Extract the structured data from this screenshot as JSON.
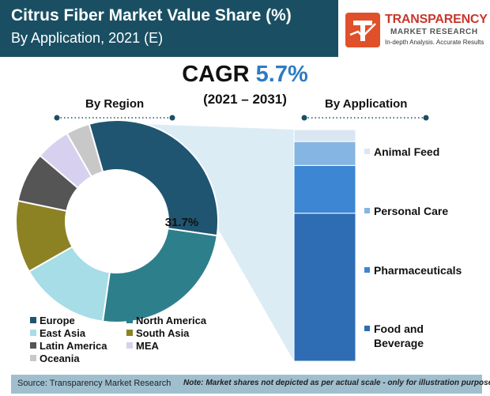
{
  "header": {
    "title": "Citrus Fiber Market Value Share (%)",
    "subtitle": "By Application, 2021 (E)"
  },
  "logo": {
    "name": "TRANSPARENCY",
    "sub": "MARKET RESEARCH",
    "tagline": "In-depth Analysis. Accurate Results"
  },
  "cagr": {
    "label": "CAGR",
    "value": "5.7%",
    "period": "(2021 – 2031)"
  },
  "chart_data": [
    {
      "type": "pie",
      "title": "By Region",
      "annotation": "31.7%",
      "categories": [
        "Europe",
        "North America",
        "East Asia",
        "South Asia",
        "Latin America",
        "MEA",
        "Oceania"
      ],
      "values": [
        31.7,
        25.0,
        14.5,
        11.5,
        8.0,
        5.5,
        3.8
      ],
      "colors": [
        "#1f5570",
        "#2e7f8c",
        "#a6dde6",
        "#8c8224",
        "#555555",
        "#d7d0ef",
        "#c8c8c8"
      ],
      "legend": "bottom"
    },
    {
      "type": "bar",
      "title": "By Application",
      "stacked": true,
      "categories": [
        "Food and Beverage",
        "Pharmaceuticals",
        "Personal Care",
        "Animal Feed"
      ],
      "values": [
        62,
        20,
        10,
        5
      ],
      "colors": [
        "#2e6db4",
        "#3c86d3",
        "#85b5e3",
        "#dbe6f3"
      ],
      "note": "Market shares not depicted as per actual scale - only for illustration purposes"
    }
  ],
  "app_labels": {
    "animal_feed": "Animal Feed",
    "personal_care": "Personal Care",
    "pharmaceuticals": "Pharmaceuticals",
    "food_line1": "Food and",
    "food_line2": "Beverage"
  },
  "footer": {
    "source": "Source: Transparency Market Research",
    "note": "Note: Market shares not depicted as per actual scale - only for illustration purposes"
  }
}
